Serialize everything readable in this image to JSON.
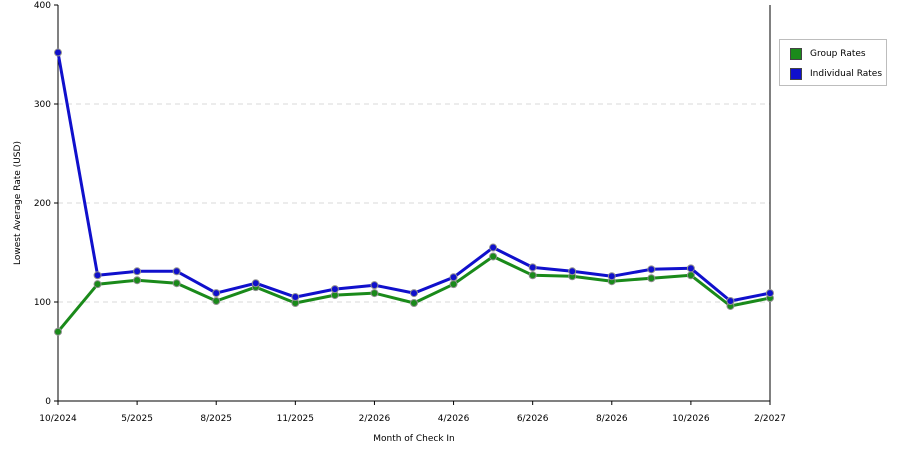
{
  "chart_data": {
    "type": "line",
    "ylabel": "Lowest Average Rate (USD)",
    "xlabel": "Month of Check In",
    "ylim": [
      0,
      400
    ],
    "yticks": [
      0,
      100,
      200,
      300,
      400
    ],
    "grid": true,
    "legend_position": "right",
    "x_tick_labels": [
      "10/2024",
      "5/2025",
      "8/2025",
      "11/2025",
      "2/2026",
      "4/2026",
      "6/2026",
      "8/2026",
      "10/2026",
      "2/2027"
    ],
    "series": [
      {
        "name": "Group Rates",
        "color": "#1a8a1a",
        "values": [
          70,
          118,
          122,
          119,
          101,
          115,
          99,
          107,
          109,
          99,
          118,
          146,
          127,
          126,
          121,
          124,
          127,
          96,
          104
        ]
      },
      {
        "name": "Individual Rates",
        "color": "#1010cc",
        "values": [
          352,
          127,
          131,
          131,
          109,
          119,
          105,
          113,
          117,
          109,
          125,
          155,
          135,
          131,
          126,
          133,
          134,
          101,
          109
        ]
      }
    ]
  }
}
